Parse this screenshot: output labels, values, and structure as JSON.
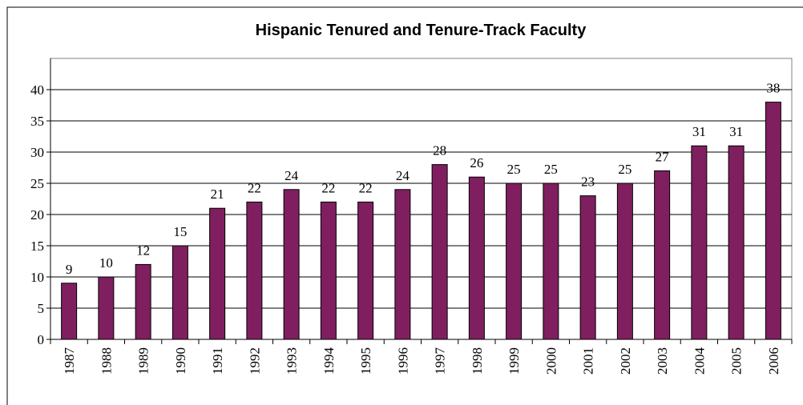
{
  "chart_data": {
    "type": "bar",
    "title": "Hispanic Tenured and Tenure-Track Faculty",
    "categories": [
      "1987",
      "1988",
      "1989",
      "1990",
      "1991",
      "1992",
      "1993",
      "1994",
      "1995",
      "1996",
      "1997",
      "1998",
      "1999",
      "2000",
      "2001",
      "2002",
      "2003",
      "2004",
      "2005",
      "2006"
    ],
    "values": [
      9,
      10,
      12,
      15,
      21,
      22,
      24,
      22,
      22,
      24,
      28,
      26,
      25,
      25,
      23,
      25,
      27,
      31,
      31,
      38
    ],
    "color": "#7f1f5f",
    "ylim": [
      0,
      45
    ],
    "yticks": [
      0,
      5,
      10,
      15,
      20,
      25,
      30,
      35,
      40
    ],
    "grid": true
  }
}
